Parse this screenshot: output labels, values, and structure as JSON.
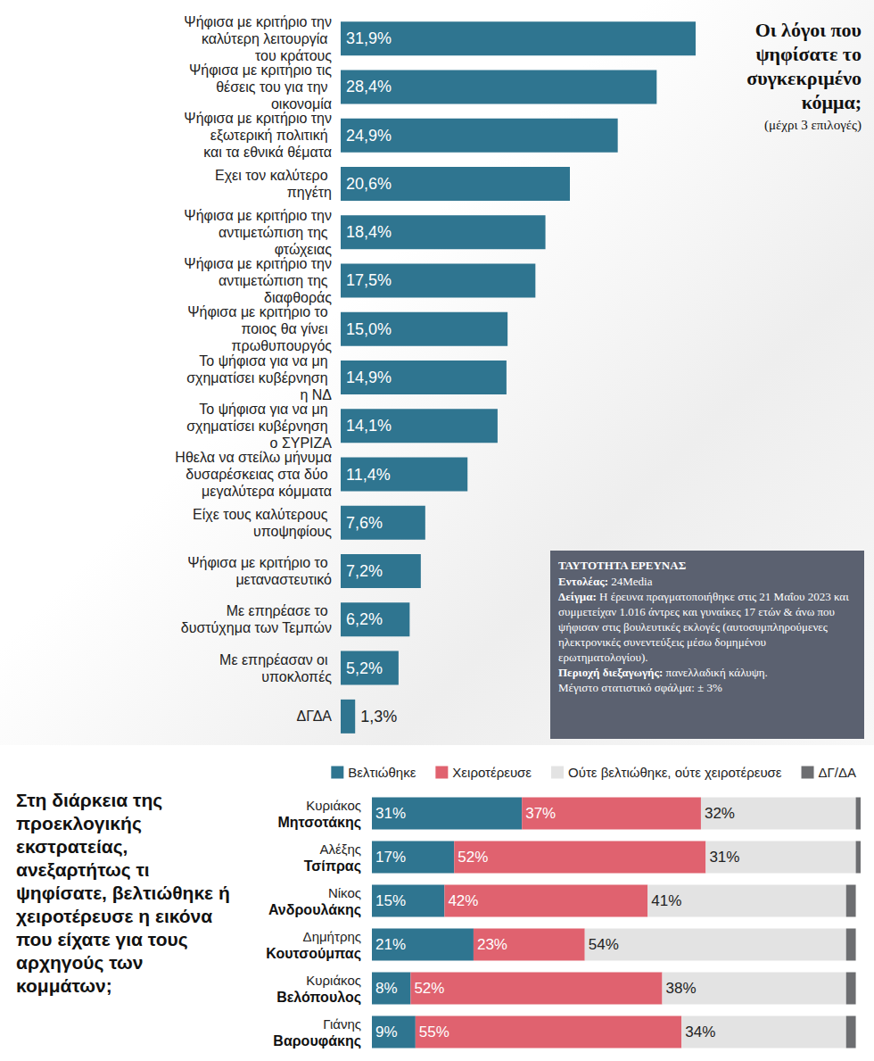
{
  "chart_data": [
    {
      "type": "bar",
      "title": "Οι λόγοι που ψηφίσατε το συγκεκριμένο κόμμα;",
      "subtitle": "(μέχρι 3 επιλογές)",
      "orientation": "horizontal",
      "data_labels": true,
      "tick_labels": "y",
      "color": "#2f7590",
      "categories": [
        "Ψήφισα με κριτήριο την καλύτερη λειτουργία του κράτους",
        "Ψήφισα με κριτήριο τις θέσεις του για την οικονομία",
        "Ψήφισα με κριτήριο την εξωτερική πολιτική και τα εθνικά θέματα",
        "Εχει τον καλύτερο πηγέτη",
        "Ψήφισα με κριτήριο την αντιμετώπιση της φτώχειας",
        "Ψήφισα με κριτήριο την αντιμετώπιση της διαφθοράς",
        "Ψήφισα με κριτήριο το ποιος θα γίνει πρωθυπουργός",
        "Το ψήφισα για να μη σχηματίσει κυβέρνηση η ΝΔ",
        "Το ψήφισα για να μη σχηματίσει κυβέρνηση ο ΣΥΡΙΖΑ",
        "Ηθελα να στείλω μήνυμα δυσαρέσκειας στα δύο μεγαλύτερα κόμματα",
        "Είχε τους καλύτερους υποψηφίους",
        "Ψήφισα με κριτήριο το μεταναστευτικό",
        "Με επηρέασε το δυστύχημα των Τεμπών",
        "Με επηρέασαν οι υποκλοπές",
        "ΔΓΔΑ"
      ],
      "values": [
        31.9,
        28.4,
        24.9,
        20.6,
        18.4,
        17.5,
        15.0,
        14.9,
        14.1,
        11.4,
        7.6,
        7.2,
        6.2,
        5.2,
        1.3
      ],
      "value_labels": [
        "31,9%",
        "28,4%",
        "24,9%",
        "20,6%",
        "18,4%",
        "17,5%",
        "15,0%",
        "14,9%",
        "14,1%",
        "11,4%",
        "7,6%",
        "7,2%",
        "6,2%",
        "5,2%",
        "1,3%"
      ],
      "annotations": {
        "heading": "ΤΑΥΤΟΤΗΤΑ ΕΡΕΥΝΑΣ",
        "items": [
          {
            "label": "Εντολέας:",
            "text": "24Media"
          },
          {
            "label": "Δείγμα:",
            "text": "Η έρευνα πραγματοποιήθηκε στις 21 Μαΐου 2023 και συμμετείχαν 1.016 άντρες και γυναίκες 17 ετών & άνω που ψήφισαν στις βουλευτικές εκλογές (αυτοσυμπληρούμενες ηλεκτρονικές συνεντεύξεις μέσω δομημένου ερωτηματολογίου)."
          },
          {
            "label": "Περιοχή διεξαγωγής:",
            "text": "πανελλαδική κάλυψη."
          },
          {
            "label": "",
            "text": "Μέγιστο στατιστικό σφάλμα: ± 3%"
          }
        ]
      }
    },
    {
      "type": "bar",
      "title": "Στη διάρκεια της προεκλογικής εκστρατείας, ανεξαρτήτως τι ψηφίσατε, βελτιώθηκε ή χειροτέρευσε η εικόνα που είχατε για τους αρχηγούς των κομμάτων;",
      "orientation": "horizontal",
      "stacked": true,
      "data_labels": true,
      "tick_labels": "y",
      "legend": "top",
      "categories": [
        "Κυριάκος Μητσοτάκης",
        "Αλέξης Τσίπρας",
        "Νίκος Ανδρουλάκης",
        "Δημήτρης Κουτσούμπας",
        "Κυριάκος Βελόπουλος",
        "Γιάνης Βαρουφάκης"
      ],
      "series": [
        {
          "name": "Βελτιώθηκε",
          "color": "#2f7590",
          "values": [
            31,
            17,
            15,
            21,
            8,
            9
          ],
          "value_labels": [
            "31%",
            "17%",
            "15%",
            "21%",
            "8%",
            "9%"
          ]
        },
        {
          "name": "Χειροτέρευσε",
          "color": "#e0626f",
          "values": [
            37,
            52,
            42,
            23,
            52,
            55
          ],
          "value_labels": [
            "37%",
            "52%",
            "42%",
            "23%",
            "52%",
            "55%"
          ]
        },
        {
          "name": "Ούτε βελτιώθηκε, ούτε χειροτέρευσε",
          "color": "#e3e3e3",
          "values": [
            32,
            31,
            41,
            54,
            38,
            34
          ],
          "value_labels": [
            "32%",
            "31%",
            "41%",
            "54%",
            "38%",
            "34%"
          ]
        },
        {
          "name": "ΔΓ/ΔΑ",
          "color": "#6d6e71",
          "values": [
            1,
            1,
            2,
            2,
            2,
            2
          ]
        }
      ]
    }
  ]
}
